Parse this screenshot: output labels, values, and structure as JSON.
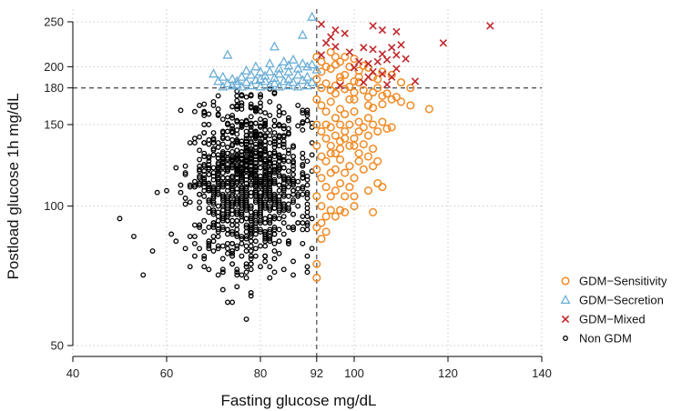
{
  "chart_data": {
    "type": "scatter",
    "xlabel": "Fasting glucose mg/dL",
    "ylabel": "Postload glucose 1h mg/dL",
    "xlim": [
      40,
      140
    ],
    "ylim": [
      50,
      250
    ],
    "y_scale": "log",
    "x_ticks": [
      40,
      60,
      80,
      92,
      100,
      120,
      140
    ],
    "y_ticks": [
      50,
      100,
      150,
      180,
      200,
      250
    ],
    "x_grid": [
      40,
      60,
      80,
      100,
      120,
      140
    ],
    "y_grid": [
      50,
      100,
      150,
      200,
      250
    ],
    "threshold_x": 92,
    "threshold_y": 180,
    "grid": true,
    "legend_position": "bottom-right",
    "colors": {
      "sensitivity": "#F08A24",
      "secretion": "#6BAED6",
      "mixed": "#C0282D",
      "non_gdm": "#000000",
      "threshold": "#555555"
    },
    "series": [
      {
        "name": "GDM−Sensitivity",
        "marker": "circle",
        "color": "#F08A24",
        "points": [
          [
            92,
            210
          ],
          [
            93,
            205
          ],
          [
            93,
            195
          ],
          [
            94,
            200
          ],
          [
            95,
            198
          ],
          [
            96,
            202
          ],
          [
            97,
            205
          ],
          [
            98,
            210
          ],
          [
            99,
            200
          ],
          [
            100,
            208
          ],
          [
            101,
            196
          ],
          [
            102,
            201
          ],
          [
            103,
            199
          ],
          [
            104,
            190
          ],
          [
            105,
            188
          ],
          [
            106,
            195
          ],
          [
            108,
            192
          ],
          [
            110,
            185
          ],
          [
            112,
            180
          ],
          [
            92,
            188
          ],
          [
            93,
            180
          ],
          [
            94,
            184
          ],
          [
            95,
            178
          ],
          [
            96,
            182
          ],
          [
            97,
            186
          ],
          [
            98,
            179
          ],
          [
            99,
            181
          ],
          [
            100,
            176
          ],
          [
            101,
            185
          ],
          [
            102,
            178
          ],
          [
            103,
            172
          ],
          [
            104,
            176
          ],
          [
            105,
            180
          ],
          [
            106,
            173
          ],
          [
            107,
            175
          ],
          [
            108,
            170
          ],
          [
            109,
            172
          ],
          [
            110,
            168
          ],
          [
            112,
            165
          ],
          [
            116,
            162
          ],
          [
            92,
            170
          ],
          [
            93,
            165
          ],
          [
            94,
            160
          ],
          [
            95,
            168
          ],
          [
            96,
            155
          ],
          [
            97,
            162
          ],
          [
            98,
            158
          ],
          [
            99,
            150
          ],
          [
            100,
            160
          ],
          [
            101,
            152
          ],
          [
            102,
            148
          ],
          [
            103,
            155
          ],
          [
            104,
            150
          ],
          [
            105,
            145
          ],
          [
            106,
            152
          ],
          [
            107,
            147
          ],
          [
            108,
            148
          ],
          [
            92,
            150
          ],
          [
            93,
            145
          ],
          [
            94,
            140
          ],
          [
            95,
            148
          ],
          [
            96,
            142
          ],
          [
            97,
            138
          ],
          [
            98,
            145
          ],
          [
            99,
            135
          ],
          [
            100,
            140
          ],
          [
            101,
            130
          ],
          [
            102,
            136
          ],
          [
            103,
            128
          ],
          [
            104,
            133
          ],
          [
            105,
            125
          ],
          [
            92,
            135
          ],
          [
            93,
            128
          ],
          [
            94,
            125
          ],
          [
            95,
            130
          ],
          [
            96,
            120
          ],
          [
            97,
            126
          ],
          [
            98,
            118
          ],
          [
            99,
            122
          ],
          [
            100,
            115
          ],
          [
            101,
            125
          ],
          [
            102,
            120
          ],
          [
            104,
            122
          ],
          [
            92,
            120
          ],
          [
            93,
            115
          ],
          [
            94,
            110
          ],
          [
            95,
            118
          ],
          [
            96,
            108
          ],
          [
            97,
            112
          ],
          [
            98,
            105
          ],
          [
            99,
            110
          ],
          [
            100,
            105
          ],
          [
            103,
            108
          ],
          [
            105,
            112
          ],
          [
            92,
            105
          ],
          [
            93,
            100
          ],
          [
            94,
            95
          ],
          [
            95,
            98
          ],
          [
            96,
            95
          ],
          [
            98,
            97
          ],
          [
            100,
            100
          ],
          [
            104,
            97
          ],
          [
            92,
            90
          ],
          [
            93,
            85
          ],
          [
            92,
            75
          ],
          [
            92,
            70
          ],
          [
            93,
            92
          ],
          [
            94,
            88
          ],
          [
            95,
            105
          ],
          [
            97,
            98
          ],
          [
            106,
            110
          ],
          [
            95,
            215
          ],
          [
            96,
            210
          ],
          [
            97,
            190
          ],
          [
            98,
            192
          ],
          [
            100,
            186
          ],
          [
            101,
            190
          ],
          [
            96,
            175
          ],
          [
            99,
            170
          ],
          [
            100,
            170
          ],
          [
            103,
            165
          ],
          [
            104,
            163
          ],
          [
            106,
            166
          ],
          [
            97,
            150
          ],
          [
            98,
            140
          ],
          [
            100,
            135
          ],
          [
            101,
            145
          ],
          [
            103,
            142
          ],
          [
            94,
            150
          ],
          [
            95,
            135
          ],
          [
            96,
            130
          ],
          [
            97,
            133
          ]
        ]
      },
      {
        "name": "GDM−Secretion",
        "marker": "triangle",
        "color": "#6BAED6",
        "points": [
          [
            91,
            256
          ],
          [
            89,
            234
          ],
          [
            83,
            221
          ],
          [
            73,
            212
          ],
          [
            79,
            200
          ],
          [
            82,
            203
          ],
          [
            85,
            205
          ],
          [
            87,
            207
          ],
          [
            89,
            203
          ],
          [
            90,
            200
          ],
          [
            91,
            202
          ],
          [
            70,
            193
          ],
          [
            72,
            190
          ],
          [
            74,
            188
          ],
          [
            76,
            190
          ],
          [
            78,
            192
          ],
          [
            80,
            195
          ],
          [
            81,
            191
          ],
          [
            83,
            189
          ],
          [
            84,
            193
          ],
          [
            86,
            195
          ],
          [
            88,
            198
          ],
          [
            90,
            190
          ],
          [
            71,
            186
          ],
          [
            73,
            184
          ],
          [
            75,
            183
          ],
          [
            77,
            185
          ],
          [
            79,
            187
          ],
          [
            81,
            186
          ],
          [
            83,
            184
          ],
          [
            85,
            186
          ],
          [
            87,
            185
          ],
          [
            89,
            187
          ],
          [
            91,
            185
          ],
          [
            72,
            181
          ],
          [
            74,
            182
          ],
          [
            76,
            181
          ],
          [
            78,
            182
          ],
          [
            80,
            181
          ],
          [
            82,
            182
          ],
          [
            84,
            181
          ],
          [
            86,
            182
          ],
          [
            88,
            181
          ],
          [
            90,
            182
          ],
          [
            77,
            196
          ],
          [
            86,
            188
          ],
          [
            88,
            192
          ],
          [
            75,
            186
          ],
          [
            82,
            195
          ],
          [
            84,
            198
          ],
          [
            80,
            188
          ],
          [
            86,
            201
          ],
          [
            92,
            197
          ]
        ]
      },
      {
        "name": "GDM−Mixed",
        "marker": "x",
        "color": "#C0282D",
        "points": [
          [
            93,
            247
          ],
          [
            96,
            240
          ],
          [
            98,
            236
          ],
          [
            95,
            232
          ],
          [
            94,
            225
          ],
          [
            96,
            221
          ],
          [
            99,
            215
          ],
          [
            93,
            212
          ],
          [
            104,
            245
          ],
          [
            106,
            240
          ],
          [
            109,
            238
          ],
          [
            129,
            245
          ],
          [
            119,
            225
          ],
          [
            102,
            220
          ],
          [
            104,
            218
          ],
          [
            106,
            213
          ],
          [
            108,
            220
          ],
          [
            109,
            212
          ],
          [
            110,
            223
          ],
          [
            111,
            208
          ],
          [
            107,
            207
          ],
          [
            105,
            205
          ],
          [
            103,
            203
          ],
          [
            101,
            205
          ],
          [
            100,
            199
          ],
          [
            104,
            195
          ],
          [
            106,
            193
          ],
          [
            108,
            190
          ],
          [
            113,
            186
          ],
          [
            109,
            198
          ],
          [
            97,
            182
          ],
          [
            102,
            185
          ],
          [
            103,
            190
          ],
          [
            107,
            183
          ]
        ]
      },
      {
        "name": "Non GDM",
        "marker": "ring",
        "color": "#000000",
        "generator": {
          "count": 1100,
          "x_center": 78,
          "y_center": 112,
          "x_spread": 6.5,
          "y_spread": 0.21,
          "seed": 7
        },
        "outliers": [
          [
            50,
            94
          ],
          [
            53,
            86
          ],
          [
            55,
            71
          ],
          [
            57,
            80
          ],
          [
            58,
            107
          ],
          [
            60,
            108
          ],
          [
            61,
            87
          ]
        ]
      }
    ]
  }
}
